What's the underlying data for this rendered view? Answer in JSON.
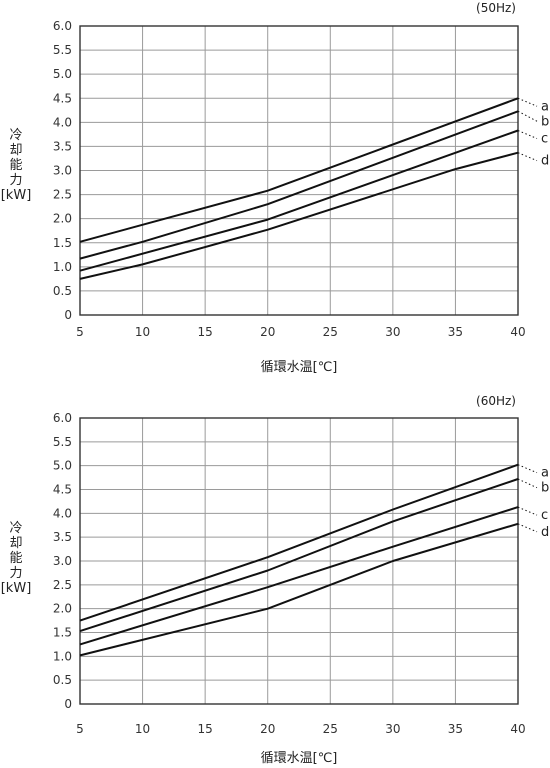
{
  "chart_data": [
    {
      "type": "line",
      "hz_label": "(50Hz)",
      "ylabel_chars": [
        "冷",
        "却",
        "能",
        "力"
      ],
      "yunit": "[kW]",
      "xlabel": "循環水温[℃]",
      "xlim": [
        5,
        40
      ],
      "ylim": [
        0,
        6
      ],
      "xticks": [
        5,
        10,
        15,
        20,
        25,
        30,
        35,
        40
      ],
      "xtick_labels": [
        "5",
        "10",
        "15",
        "20",
        "25",
        "30",
        "35",
        "40"
      ],
      "yticks": [
        0,
        0.5,
        1,
        1.5,
        2,
        2.5,
        3,
        3.5,
        4,
        4.5,
        5,
        5.5,
        6
      ],
      "ytick_labels": [
        "0",
        "0.5",
        "1.0",
        "1.5",
        "2.0",
        "2.5",
        "3.0",
        "3.5",
        "4.0",
        "4.5",
        "5.0",
        "5.5",
        "6.0"
      ],
      "grid": true,
      "series": [
        {
          "name": "a",
          "x": [
            5,
            20,
            40
          ],
          "y": [
            1.52,
            2.58,
            4.5
          ]
        },
        {
          "name": "b",
          "x": [
            5,
            10,
            20,
            40
          ],
          "y": [
            1.17,
            1.52,
            2.3,
            4.23
          ]
        },
        {
          "name": "c",
          "x": [
            5,
            20,
            40
          ],
          "y": [
            0.92,
            1.98,
            3.83
          ]
        },
        {
          "name": "d",
          "x": [
            5,
            10,
            20,
            35,
            40
          ],
          "y": [
            0.75,
            1.05,
            1.77,
            3.03,
            3.37
          ]
        }
      ]
    },
    {
      "type": "line",
      "hz_label": "(60Hz)",
      "ylabel_chars": [
        "冷",
        "却",
        "能",
        "力"
      ],
      "yunit": "[kW]",
      "xlabel": "循環水温[℃]",
      "xlim": [
        5,
        40
      ],
      "ylim": [
        0,
        6
      ],
      "xticks": [
        5,
        10,
        15,
        20,
        25,
        30,
        35,
        40
      ],
      "xtick_labels": [
        "5",
        "10",
        "15",
        "20",
        "25",
        "30",
        "35",
        "40"
      ],
      "yticks": [
        0,
        0.5,
        1,
        1.5,
        2,
        2.5,
        3,
        3.5,
        4,
        4.5,
        5,
        5.5,
        6
      ],
      "ytick_labels": [
        "0",
        "0.5",
        "1.0",
        "1.5",
        "2.0",
        "2.5",
        "3.0",
        "3.5",
        "4.0",
        "4.5",
        "5.0",
        "5.5",
        "6.0"
      ],
      "grid": true,
      "series": [
        {
          "name": "a",
          "x": [
            5,
            20,
            30,
            40
          ],
          "y": [
            1.75,
            3.08,
            4.08,
            5.02
          ]
        },
        {
          "name": "b",
          "x": [
            5,
            20,
            30,
            40
          ],
          "y": [
            1.53,
            2.8,
            3.83,
            4.72
          ]
        },
        {
          "name": "c",
          "x": [
            5,
            20,
            30,
            40
          ],
          "y": [
            1.25,
            2.45,
            3.3,
            4.13
          ]
        },
        {
          "name": "d",
          "x": [
            5,
            20,
            30,
            40
          ],
          "y": [
            1.02,
            2.0,
            3.0,
            3.78
          ]
        }
      ]
    }
  ]
}
